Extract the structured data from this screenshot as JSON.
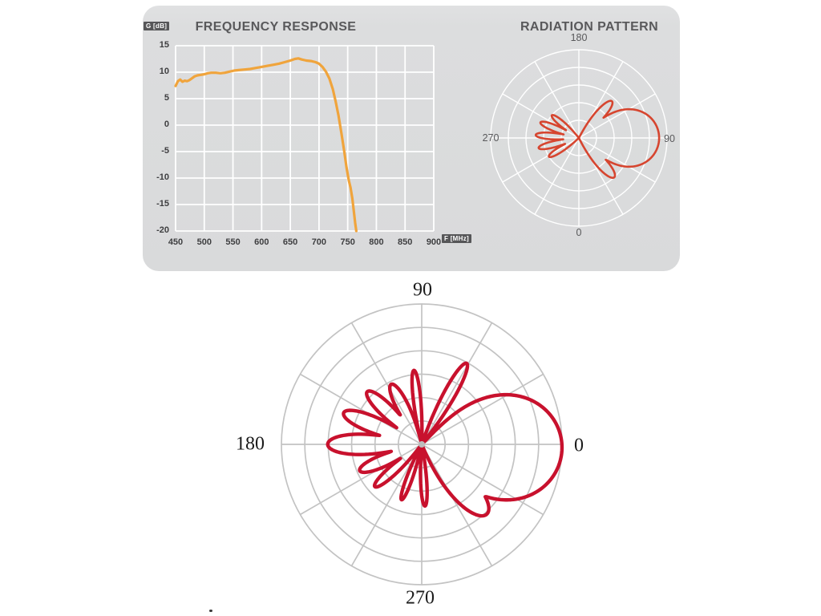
{
  "theme": {
    "panel_bg": "#dcddde",
    "grid_white": "#ffffff",
    "polar_grid_small": "#ffffff",
    "polar_grid_large": "#c3c3c3",
    "title_color": "#59595b",
    "tick_color": "#3e3e40",
    "badge_bg": "#565658",
    "badge_text": "#ffffff",
    "center_dot": "#bdbdbd"
  },
  "chart_data": [
    {
      "type": "line",
      "title": "FREQUENCY RESPONSE",
      "ylabel": "G [dB]",
      "xlabel": "F [MHz]",
      "xlim": [
        450,
        900
      ],
      "ylim": [
        -20,
        15
      ],
      "x_ticks": [
        450,
        500,
        550,
        600,
        650,
        700,
        750,
        800,
        850,
        900
      ],
      "y_ticks": [
        15,
        10,
        5,
        0,
        -5,
        -10,
        -15,
        -20
      ],
      "grid": true,
      "series": [
        {
          "name": "gain",
          "color": "#f0a43c",
          "points": [
            [
              450,
              7.4
            ],
            [
              454,
              8.3
            ],
            [
              458,
              8.6
            ],
            [
              462,
              8.2
            ],
            [
              466,
              8.4
            ],
            [
              470,
              8.3
            ],
            [
              474,
              8.5
            ],
            [
              478,
              8.8
            ],
            [
              483,
              9.2
            ],
            [
              488,
              9.4
            ],
            [
              494,
              9.5
            ],
            [
              500,
              9.6
            ],
            [
              506,
              9.8
            ],
            [
              512,
              9.9
            ],
            [
              520,
              9.9
            ],
            [
              528,
              9.8
            ],
            [
              536,
              9.9
            ],
            [
              544,
              10.1
            ],
            [
              552,
              10.3
            ],
            [
              560,
              10.4
            ],
            [
              570,
              10.5
            ],
            [
              580,
              10.6
            ],
            [
              590,
              10.8
            ],
            [
              600,
              11.0
            ],
            [
              610,
              11.2
            ],
            [
              620,
              11.4
            ],
            [
              630,
              11.6
            ],
            [
              640,
              11.9
            ],
            [
              650,
              12.2
            ],
            [
              658,
              12.5
            ],
            [
              664,
              12.6
            ],
            [
              670,
              12.4
            ],
            [
              678,
              12.2
            ],
            [
              686,
              12.1
            ],
            [
              694,
              11.9
            ],
            [
              700,
              11.6
            ],
            [
              706,
              11.0
            ],
            [
              712,
              10.1
            ],
            [
              718,
              8.8
            ],
            [
              724,
              6.8
            ],
            [
              729,
              4.5
            ],
            [
              734,
              1.8
            ],
            [
              739,
              -1.5
            ],
            [
              744,
              -5.0
            ],
            [
              748,
              -8.0
            ],
            [
              752,
              -10.5
            ],
            [
              755,
              -11.8
            ],
            [
              758,
              -13.8
            ],
            [
              761,
              -16.5
            ],
            [
              763,
              -18.5
            ],
            [
              765,
              -20.0
            ]
          ]
        }
      ]
    },
    {
      "type": "polar",
      "title": "RADIATION PATTERN",
      "angle_labels": {
        "top": "180",
        "right": "90",
        "bottom": "0",
        "left": "270"
      },
      "rings": 5,
      "spoke_step_deg": 30,
      "color": "#d6452f",
      "angle_convention": "0=right(screen), CCW positive, normalized radius 0..1",
      "lobes": [
        {
          "a": 0,
          "p": 0.91,
          "w": 42,
          "e": 0.4
        },
        {
          "a": 48,
          "p": 0.56,
          "w": 14,
          "e": 0.8
        },
        {
          "a": -48,
          "p": 0.6,
          "w": 15,
          "e": 0.8
        },
        {
          "a": 140,
          "p": 0.4,
          "w": 11,
          "e": 0.8
        },
        {
          "a": 158,
          "p": 0.47,
          "w": 11,
          "e": 0.8
        },
        {
          "a": 176,
          "p": 0.49,
          "w": 11,
          "e": 0.8
        },
        {
          "a": 194,
          "p": 0.47,
          "w": 11,
          "e": 0.8
        },
        {
          "a": 212,
          "p": 0.4,
          "w": 11,
          "e": 0.8
        }
      ]
    },
    {
      "type": "polar",
      "title": "",
      "angle_labels": {
        "top": "90",
        "right": "0",
        "bottom": "270",
        "left": "180"
      },
      "rings": 6,
      "spoke_step_deg": 30,
      "color": "#c8112d",
      "angle_convention": "0=right(screen), CCW positive, normalized radius 0..1",
      "lobes": [
        {
          "a": -2,
          "p": 1.0,
          "w": 48,
          "e": 0.5
        },
        {
          "a": -47,
          "p": 0.68,
          "w": 20,
          "e": 0.8
        },
        {
          "a": 61,
          "p": 0.66,
          "w": 10,
          "e": 1.0
        },
        {
          "a": 96,
          "p": 0.53,
          "w": 8,
          "e": 1.0
        },
        {
          "a": 117,
          "p": 0.48,
          "w": 13,
          "e": 0.8
        },
        {
          "a": 136,
          "p": 0.54,
          "w": 13,
          "e": 0.8
        },
        {
          "a": 158,
          "p": 0.6,
          "w": 14,
          "e": 0.8
        },
        {
          "a": 180,
          "p": 0.67,
          "w": 15,
          "e": 0.7
        },
        {
          "a": 203,
          "p": 0.48,
          "w": 13,
          "e": 0.8
        },
        {
          "a": 222,
          "p": 0.45,
          "w": 11,
          "e": 0.9
        },
        {
          "a": 250,
          "p": 0.42,
          "w": 8,
          "e": 1.0
        },
        {
          "a": 273,
          "p": 0.44,
          "w": 8,
          "e": 1.0
        }
      ]
    }
  ]
}
